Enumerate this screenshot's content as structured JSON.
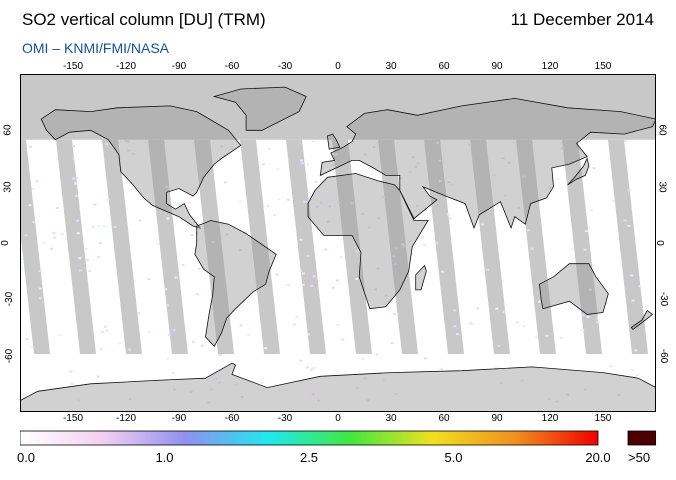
{
  "header": {
    "title": "SO2 vertical column [DU] (TRM)",
    "date": "11 December 2014",
    "credit": "OMI  –  KNMI/FMI/NASA"
  },
  "map": {
    "lon_range": [
      -180,
      180
    ],
    "lat_range": [
      -90,
      90
    ],
    "lon_ticks": [
      "-150",
      "-120",
      "-90",
      "-60",
      "-30",
      "0",
      "30",
      "60",
      "90",
      "120",
      "150"
    ],
    "lon_tick_values": [
      -150,
      -120,
      -90,
      -60,
      -30,
      0,
      30,
      60,
      90,
      120,
      150
    ],
    "lat_ticks": [
      "60",
      "30",
      "0",
      "-30",
      "-60"
    ],
    "lat_tick_values": [
      60,
      30,
      0,
      -30,
      -60
    ],
    "no_data_color": "#c8c8c8",
    "land_shading_color": "#9a9a9a",
    "polar_night_north_lat": 55
  },
  "colorbar": {
    "labels": [
      "0.0",
      "1.0",
      "2.5",
      "5.0",
      "20.0"
    ],
    "label_positions": [
      0,
      0.25,
      0.5,
      0.75,
      1.0
    ],
    "over_label": ">50",
    "over_color": "#4a0000",
    "stops": [
      "#ffffff",
      "#f3d0f0",
      "#9090f0",
      "#20e8f0",
      "#40e840",
      "#f0e020",
      "#f09020",
      "#f00000"
    ]
  }
}
